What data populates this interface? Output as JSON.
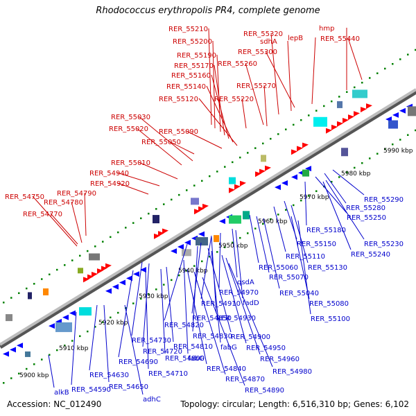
{
  "header": {
    "title": "Rhodococcus erythropolis PR4, complete genome"
  },
  "footer": {
    "accession": "Accession: NC_012490",
    "summary": "Topology: circular; Length: 6,516,310 bp; Genes: 6,102"
  },
  "colors": {
    "forward_label": "#cc0000",
    "reverse_label": "#0000cc",
    "forward_gene": "#ff0000",
    "reverse_gene": "#0000ff",
    "backbone": "#999999",
    "tick": "#008000"
  },
  "kbp_ticks": [
    "5900 kbp",
    "5910 kbp",
    "5920 kbp",
    "5930 kbp",
    "5940 kbp",
    "5950 kbp",
    "5960 kbp",
    "5970 kbp",
    "5980 kbp",
    "5990 kbp"
  ],
  "forward_genes": [
    "RER_55210",
    "RER_55200",
    "RER_55190",
    "RER_55170",
    "RER_55160",
    "RER_55140",
    "RER_55120",
    "RER_55320",
    "sdhA",
    "RER_55300",
    "lepB",
    "hmp",
    "RER_55440",
    "RER_55260",
    "RER_55270",
    "RER_55220",
    "RER_55030",
    "RER_55020",
    "RER_55090",
    "RER_55050",
    "RER_55010",
    "RER_54940",
    "RER_54920",
    "RER_54790",
    "RER_54750",
    "RER_54780",
    "RER_54770"
  ],
  "reverse_genes": [
    "RER_55290",
    "RER_55280",
    "RER_55250",
    "RER_55180",
    "RER_55230",
    "RER_55240",
    "RER_55150",
    "RER_55110",
    "RER_55130",
    "RER_55060",
    "RER_55070",
    "RER_55040",
    "RER_55080",
    "RER_55100",
    "qsdA",
    "fadD",
    "RER_54970",
    "RER_54910",
    "RER_54930",
    "RER_54850",
    "RER_54820",
    "RER_54830",
    "RER_54900",
    "RER_54730",
    "RER_54720",
    "RER_54810",
    "fabG",
    "RER_54950",
    "RER_54960",
    "RER_54800",
    "fabG",
    "RER_54690",
    "RER_54710",
    "RER_54840",
    "RER_54980",
    "RER_54630",
    "RER_54870",
    "RER_54590",
    "RER_54650",
    "RER_54890",
    "alkB",
    "adhC"
  ]
}
